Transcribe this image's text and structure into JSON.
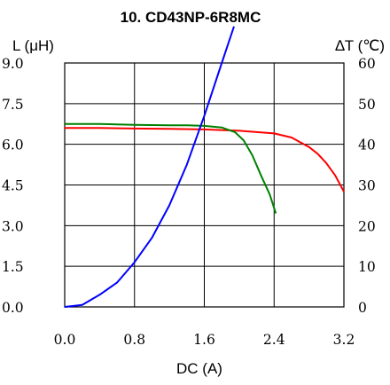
{
  "chart_data": {
    "type": "line",
    "title": "10. CD43NP-6R8MC",
    "xlabel": "DC (A)",
    "ylabel_left": "L (μH)",
    "ylabel_right": "∆T (℃)",
    "xlim": [
      0,
      3.2
    ],
    "ylim_left": [
      0,
      9
    ],
    "ylim_right": [
      0,
      60
    ],
    "x_ticks": [
      "0.0",
      "0.8",
      "1.6",
      "2.4",
      "3.2"
    ],
    "y_left_ticks": [
      "0.0",
      "1.5",
      "3.0",
      "4.5",
      "6.0",
      "7.5",
      "9.0"
    ],
    "y_right_ticks": [
      "0",
      "10",
      "20",
      "30",
      "40",
      "50",
      "60"
    ],
    "grid": true,
    "series": [
      {
        "color": "#ff0000",
        "axis": "left",
        "x": [
          0,
          0.4,
          0.8,
          1.2,
          1.6,
          2.0,
          2.2,
          2.4,
          2.6,
          2.8,
          2.9,
          3.0,
          3.1,
          3.2
        ],
        "y": [
          6.6,
          6.6,
          6.58,
          6.57,
          6.55,
          6.5,
          6.45,
          6.4,
          6.25,
          5.9,
          5.65,
          5.3,
          4.85,
          4.25
        ]
      },
      {
        "color": "#008000",
        "axis": "left",
        "x": [
          0,
          0.4,
          0.8,
          1.2,
          1.4,
          1.6,
          1.8,
          1.95,
          2.05,
          2.15,
          2.25,
          2.35,
          2.42
        ],
        "y": [
          6.75,
          6.75,
          6.72,
          6.7,
          6.7,
          6.68,
          6.62,
          6.45,
          6.15,
          5.6,
          4.85,
          4.15,
          3.45
        ]
      },
      {
        "color": "#0000ff",
        "axis": "right",
        "x": [
          0,
          0.2,
          0.4,
          0.6,
          0.8,
          1.0,
          1.2,
          1.4,
          1.6,
          1.8,
          1.94
        ],
        "y": [
          0,
          0.5,
          3,
          6,
          11,
          17,
          25,
          35,
          47,
          60,
          69
        ]
      }
    ]
  }
}
